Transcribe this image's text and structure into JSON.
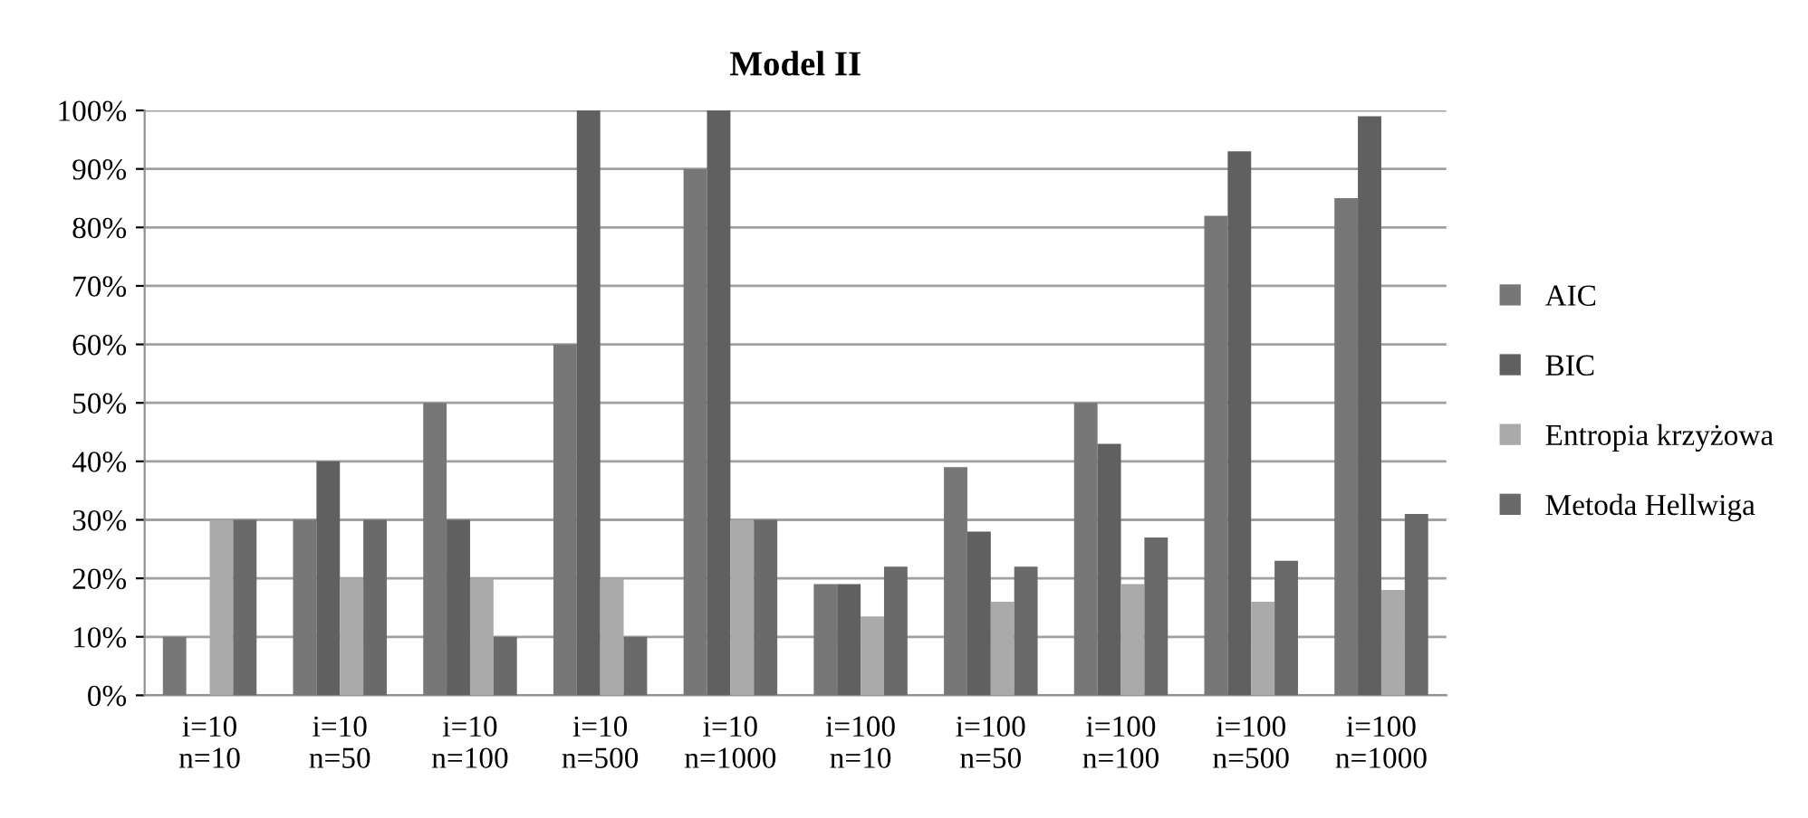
{
  "chart_data": {
    "type": "bar",
    "title": "Model II",
    "categories": [
      "i=10\nn=10",
      "i=10\nn=50",
      "i=10\nn=100",
      "i=10\nn=500",
      "i=10\nn=1000",
      "i=100\nn=10",
      "i=100\nn=50",
      "i=100\nn=100",
      "i=100\nn=500",
      "i=100\nn=1000"
    ],
    "series": [
      {
        "name": "AIC",
        "color": "#777777",
        "values": [
          10,
          30,
          50,
          60,
          90,
          19,
          39,
          50,
          82,
          85
        ]
      },
      {
        "name": "BIC",
        "color": "#606060",
        "values": [
          0,
          40,
          30,
          100,
          100,
          19,
          28,
          43,
          93,
          99
        ]
      },
      {
        "name": "Entropia krzyżowa",
        "color": "#aaaaaa",
        "values": [
          30,
          20,
          20,
          20,
          30,
          13.5,
          16,
          19,
          16,
          18
        ]
      },
      {
        "name": "Metoda Hellwiga",
        "color": "#6a6a6a",
        "values": [
          30,
          30,
          10,
          10,
          30,
          22,
          22,
          27,
          23,
          31
        ]
      }
    ],
    "ylim": [
      0,
      100
    ],
    "yticks": [
      {
        "value": 0,
        "label": "0%"
      },
      {
        "value": 10,
        "label": "10%"
      },
      {
        "value": 20,
        "label": "20%"
      },
      {
        "value": 30,
        "label": "30%"
      },
      {
        "value": 40,
        "label": "40%"
      },
      {
        "value": 50,
        "label": "50%"
      },
      {
        "value": 60,
        "label": "60%"
      },
      {
        "value": 70,
        "label": "70%"
      },
      {
        "value": 80,
        "label": "80%"
      },
      {
        "value": 90,
        "label": "90%"
      },
      {
        "value": 100,
        "label": "100%"
      }
    ],
    "grid": "y",
    "legend": "right"
  }
}
